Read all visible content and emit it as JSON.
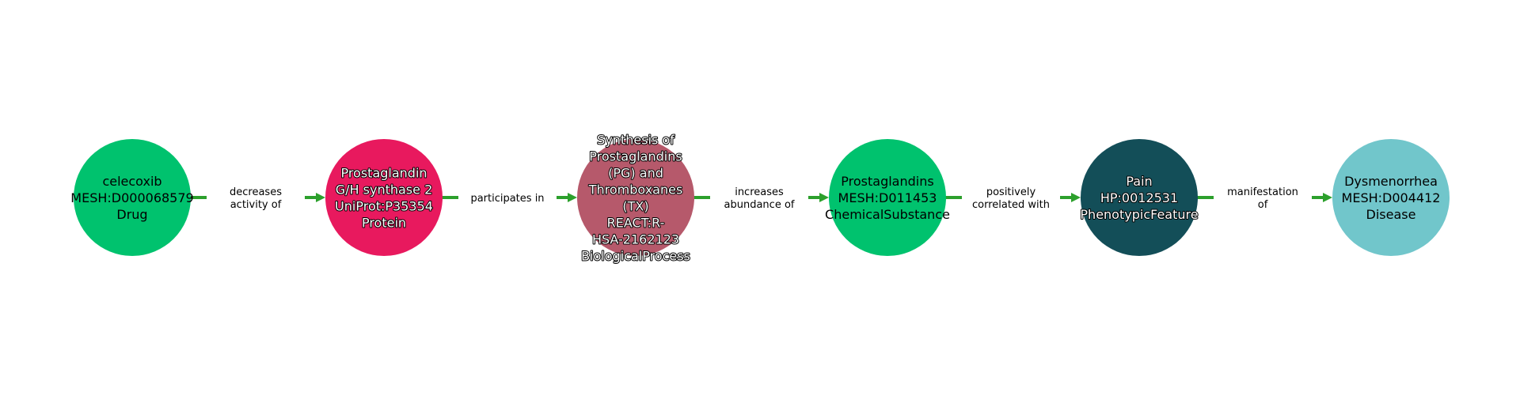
{
  "diagram": {
    "edge_color": "#2ca02c",
    "nodes": [
      {
        "id": "celecoxib",
        "lines": [
          "celecoxib",
          "MESH:D000068579",
          "Drug"
        ],
        "color": "#00c26e",
        "text_color": "#000000",
        "outline": false
      },
      {
        "id": "prostaglandin-synthase",
        "lines": [
          "Prostaglandin",
          "G/H synthase 2",
          "UniProt:P35354",
          "Protein"
        ],
        "color": "#e8195e",
        "text_color": "#ffffff",
        "outline": true
      },
      {
        "id": "synthesis-of-prostaglandins",
        "lines": [
          "Synthesis of",
          "Prostaglandins",
          "(PG) and",
          "Thromboxanes",
          "(TX)",
          "REACT:R-",
          "HSA-2162123",
          "BiologicalProcess"
        ],
        "color": "#b6596b",
        "text_color": "#ffffff",
        "outline": true
      },
      {
        "id": "prostaglandins",
        "lines": [
          "Prostaglandins",
          "MESH:D011453",
          "ChemicalSubstance"
        ],
        "color": "#00c26e",
        "text_color": "#000000",
        "outline": false
      },
      {
        "id": "pain",
        "lines": [
          "Pain",
          "HP:0012531",
          "PhenotypicFeature"
        ],
        "color": "#134e58",
        "text_color": "#ffffff",
        "outline": true
      },
      {
        "id": "dysmenorrhea",
        "lines": [
          "Dysmenorrhea",
          "MESH:D004412",
          "Disease"
        ],
        "color": "#71c6cb",
        "text_color": "#000000",
        "outline": false
      }
    ],
    "edges": [
      {
        "from": 0,
        "to": 1,
        "label_lines": [
          "decreases",
          "activity of"
        ]
      },
      {
        "from": 1,
        "to": 2,
        "label_lines": [
          "participates in"
        ]
      },
      {
        "from": 2,
        "to": 3,
        "label_lines": [
          "increases",
          "abundance of"
        ]
      },
      {
        "from": 3,
        "to": 4,
        "label_lines": [
          "positively",
          "correlated with"
        ]
      },
      {
        "from": 4,
        "to": 5,
        "label_lines": [
          "manifestation",
          "of"
        ]
      }
    ]
  }
}
